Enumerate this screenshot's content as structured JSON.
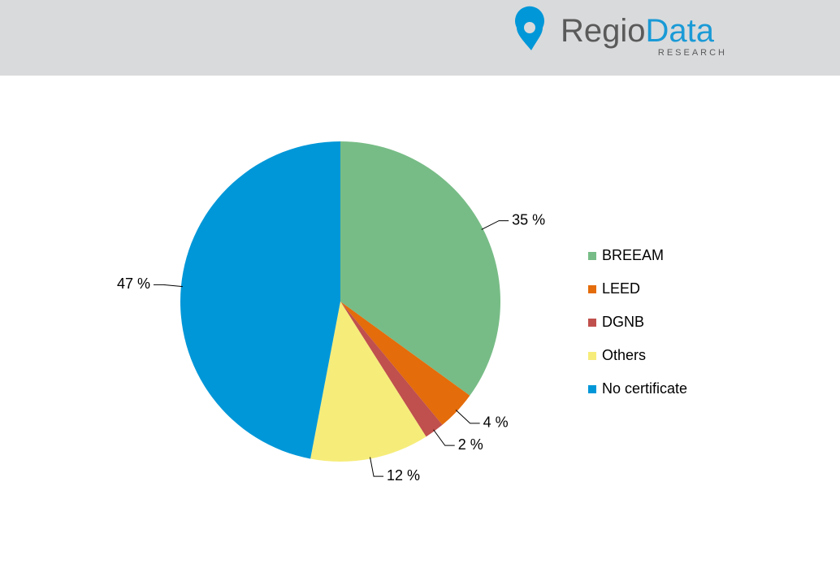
{
  "header": {
    "logo": {
      "first": "Regio",
      "second": "Data",
      "sub": "RESEARCH"
    }
  },
  "chart_data": {
    "type": "pie",
    "categories": [
      "BREEAM",
      "LEED",
      "DGNB",
      "Others",
      "No certificate"
    ],
    "values": [
      35,
      4,
      2,
      12,
      47
    ],
    "value_labels": [
      "35 %",
      "4 %",
      "2 %",
      "12 %",
      "47 %"
    ],
    "colors": [
      "#77bc86",
      "#e46c0a",
      "#c0504d",
      "#f6ec7a",
      "#0097d8"
    ],
    "legend": "right"
  }
}
